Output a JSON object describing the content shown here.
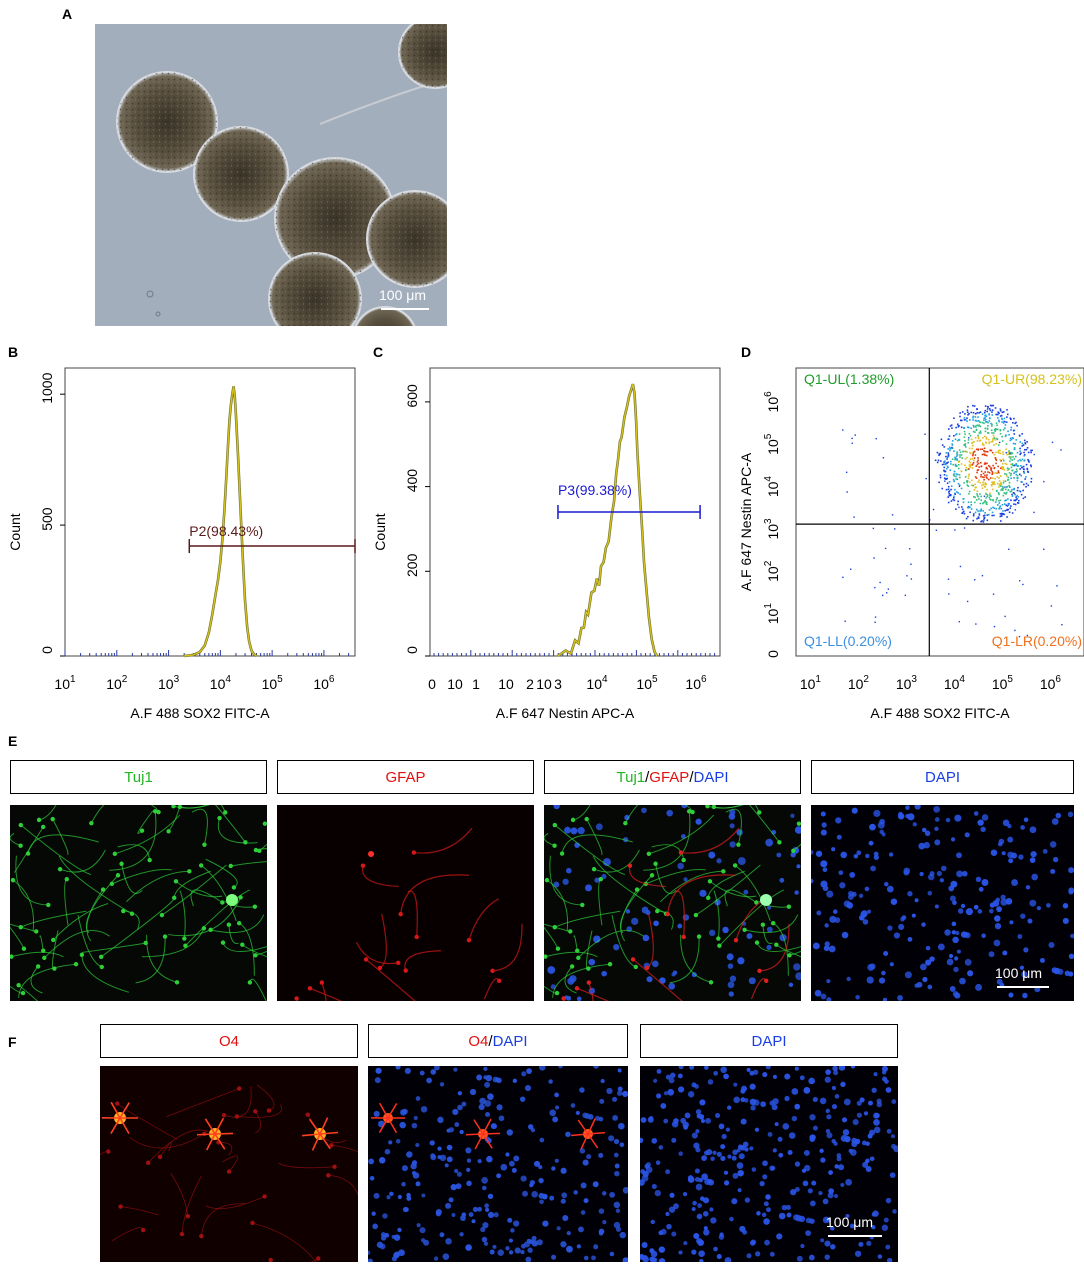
{
  "panels": {
    "A": {
      "letter": "A",
      "scale_label": "100 μm"
    },
    "B": {
      "letter": "B"
    },
    "C": {
      "letter": "C"
    },
    "D": {
      "letter": "D"
    },
    "E": {
      "letter": "E",
      "scale_label": "100 μm",
      "headers": {
        "tuj1": "Tuj1",
        "gfap": "GFAP",
        "merge_tuj1": "Tuj1",
        "slash1": "/",
        "merge_gfap": "GFAP",
        "slash2": "/",
        "merge_dapi": "DAPI",
        "dapi": "DAPI"
      }
    },
    "F": {
      "letter": "F",
      "scale_label": "100 μm",
      "headers": {
        "o4": "O4",
        "merge_o4": "O4",
        "slash": "/",
        "merge_dapi": "DAPI",
        "dapi": "DAPI"
      }
    }
  },
  "colors": {
    "green": "#22b522",
    "red": "#e01010",
    "blue": "#1a3fe0",
    "yellow": "#d4c21a"
  },
  "chart_data": [
    {
      "id": "B",
      "type": "line",
      "xlabel": "A.F 488 SOX2 FITC-A",
      "ylabel": "Count",
      "x_scale": "log",
      "xlim": [
        10,
        3981071
      ],
      "ylim": [
        0,
        1100
      ],
      "x_ticks": [
        "10",
        "10",
        "10",
        "10",
        "10",
        "10"
      ],
      "x_tick_exps": [
        "1",
        "2",
        "3",
        "4",
        "5",
        "6"
      ],
      "y_ticks": [
        "0",
        "500",
        "1000"
      ],
      "y_tick_values": [
        0,
        500,
        1000
      ],
      "gate": {
        "label": "P2(98.43%)",
        "x_start": 2511,
        "x_end": 3981071,
        "y": 420,
        "color": "#5a1a1a"
      },
      "series": [
        {
          "x": [
            2000,
            3000,
            4000,
            5000,
            6000,
            7000,
            8000,
            9000,
            10000,
            11000,
            12000,
            13000,
            14000,
            15000,
            16000,
            17000,
            18000,
            19000,
            20000,
            22000,
            24000,
            26000,
            28000,
            30000,
            33000,
            36000,
            40000,
            45000,
            50000
          ],
          "y": [
            0,
            4,
            15,
            40,
            90,
            160,
            230,
            290,
            360,
            450,
            560,
            680,
            800,
            900,
            960,
            1000,
            1030,
            990,
            920,
            760,
            600,
            450,
            320,
            210,
            110,
            55,
            20,
            6,
            0
          ]
        }
      ]
    },
    {
      "id": "C",
      "type": "line",
      "xlabel": "A.F 647 Nestin APC-A",
      "ylabel": "Count",
      "ylim": [
        0,
        680
      ],
      "x_ticks": [
        "0",
        "10",
        "1",
        "10",
        "2",
        "10",
        "3",
        "10",
        "10",
        "10"
      ],
      "x_tick_exps": [
        "",
        "",
        "",
        "",
        "",
        "",
        "",
        "4",
        "5",
        "6"
      ],
      "y_ticks": [
        "0",
        "200",
        "400",
        "600"
      ],
      "y_tick_values": [
        0,
        200,
        400,
        600
      ],
      "gate": {
        "label": "P3(99.38%)",
        "x_start": 2000,
        "x_end": 4000000,
        "y": 340,
        "color": "#1a1ad0"
      },
      "series": [
        {
          "x": [
            2000,
            3000,
            4000,
            5000,
            6000,
            7000,
            8000,
            9000,
            10000,
            12000,
            14000,
            16000,
            18000,
            20000,
            23000,
            26000,
            30000,
            35000,
            40000,
            45000,
            50000,
            55000,
            60000,
            70000,
            80000,
            90000,
            100000,
            110000,
            120000,
            130000,
            140000,
            160000,
            180000,
            200000,
            230000,
            260000,
            300000,
            350000,
            400000
          ],
          "y": [
            0,
            5,
            12,
            25,
            40,
            60,
            75,
            90,
            110,
            140,
            160,
            175,
            170,
            200,
            230,
            250,
            280,
            320,
            370,
            420,
            470,
            500,
            520,
            560,
            590,
            610,
            630,
            640,
            620,
            560,
            480,
            380,
            300,
            220,
            150,
            90,
            40,
            10,
            0
          ]
        }
      ]
    },
    {
      "id": "D",
      "type": "scatter",
      "xlabel": "A.F 488 SOX2 FITC-A",
      "ylabel": "A.F 647 Nestin APC-A",
      "x_scale": "log",
      "y_scale": "log",
      "x_ticks": [
        "10",
        "10",
        "10",
        "10",
        "10",
        "10"
      ],
      "x_tick_exps": [
        "1",
        "2",
        "3",
        "4",
        "5",
        "6"
      ],
      "y_ticks": [
        "0",
        "10",
        "10",
        "10",
        "10",
        "10",
        "10"
      ],
      "y_tick_exps": [
        "",
        "1",
        "2",
        "3",
        "4",
        "5",
        "6"
      ],
      "quadrants": {
        "UL": {
          "label": "Q1-UL(1.38%)",
          "color": "#1f9d2a"
        },
        "UR": {
          "label": "Q1-UR(98.23%)",
          "color": "#d4c21a"
        },
        "LL": {
          "label": "Q1-LL(0.20%)",
          "color": "#3a8fe0"
        },
        "LR": {
          "label": "Q1-LR(0.20%)",
          "color": "#f07020"
        }
      },
      "gate_x": 3000,
      "gate_y": 1300
    }
  ]
}
